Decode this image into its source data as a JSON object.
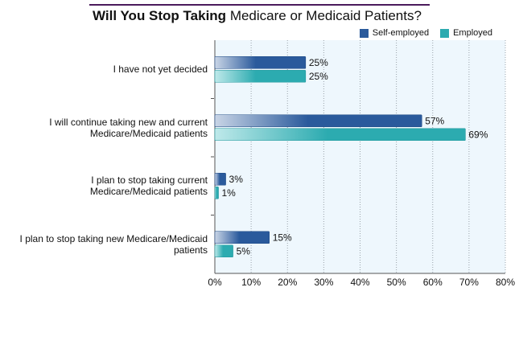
{
  "chart_data": {
    "type": "bar",
    "orientation": "horizontal",
    "title_bold": "Will You Stop Taking",
    "title_rest": "Medicare or Medicaid Patients?",
    "categories": [
      "I have not yet decided",
      "I will continue taking new and current Medicare/Medicaid patients",
      "I plan to stop taking current Medicare/Medicaid patients",
      "I plan to stop taking new Medicare/Medicaid patients"
    ],
    "category_lines": [
      [
        "I have not yet decided"
      ],
      [
        "I will continue taking new and current",
        "Medicare/Medicaid patients"
      ],
      [
        "I plan to stop taking current",
        "Medicare/Medicaid patients"
      ],
      [
        "I plan to stop taking new Medicare/Medicaid",
        "patients"
      ]
    ],
    "series": [
      {
        "name": "Self-employed",
        "values": [
          25,
          57,
          3,
          15
        ],
        "labels": [
          "25%",
          "57%",
          "3%",
          "15%"
        ]
      },
      {
        "name": "Employed",
        "values": [
          25,
          69,
          1,
          5
        ],
        "labels": [
          "25%",
          "69%",
          "1%",
          "5%"
        ]
      }
    ],
    "xlim": [
      0,
      80
    ],
    "xticks": [
      "0%",
      "10%",
      "20%",
      "30%",
      "40%",
      "50%",
      "60%",
      "70%",
      "80%"
    ],
    "xlabel": "",
    "ylabel": "",
    "grid": true,
    "legend_position": "top-right",
    "colors": {
      "self_employed": "#2a5a9c",
      "employed": "#2cabb0",
      "plot_background": "#eef7fd",
      "title_rule": "#4b1a5c"
    }
  }
}
